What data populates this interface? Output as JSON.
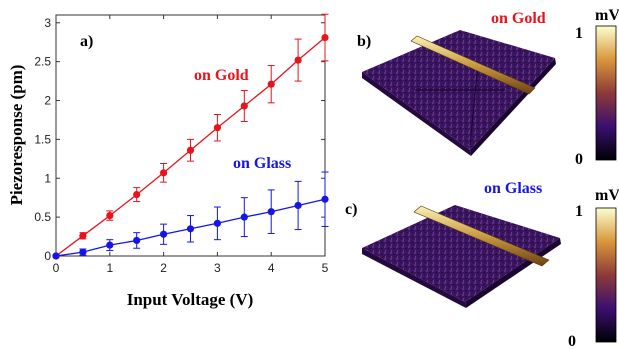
{
  "colors": {
    "gold_series": "#e8141c",
    "glass_series": "#1515e6",
    "topo_dark": "#2a0f4a",
    "topo_mid": "#5a2878",
    "topo_wire_light": "#f3e49a",
    "topo_wire_dark": "#7a4d16"
  },
  "chart_data": {
    "type": "line",
    "panel_label": "a)",
    "xlabel": "Input Voltage (V)",
    "ylabel": "Piezoresponse (pm)",
    "xlim": [
      0,
      5
    ],
    "ylim": [
      0,
      3.1
    ],
    "grid": false,
    "x_ticks": [
      "0",
      "1",
      "2",
      "3",
      "4",
      "5"
    ],
    "y_ticks": [
      "0",
      "0.5",
      "1",
      "1.5",
      "2",
      "2.5",
      "3"
    ],
    "x": [
      0,
      0.5,
      1,
      1.5,
      2,
      2.5,
      3,
      3.5,
      4,
      4.5,
      5
    ],
    "series": [
      {
        "name": "on Gold",
        "color": "#e8141c",
        "values": [
          0,
          0.26,
          0.52,
          0.79,
          1.07,
          1.36,
          1.65,
          1.93,
          2.21,
          2.52,
          2.81
        ],
        "errors": [
          0,
          0.04,
          0.06,
          0.09,
          0.12,
          0.14,
          0.17,
          0.2,
          0.24,
          0.27,
          0.3
        ]
      },
      {
        "name": "on Glass",
        "color": "#1515e6",
        "values": [
          0,
          0.05,
          0.14,
          0.2,
          0.28,
          0.35,
          0.42,
          0.5,
          0.57,
          0.65,
          0.73
        ],
        "errors": [
          0,
          0.04,
          0.07,
          0.1,
          0.13,
          0.17,
          0.21,
          0.25,
          0.28,
          0.31,
          0.35
        ]
      }
    ]
  },
  "panels": {
    "b": {
      "label": "b)",
      "title": "on Gold",
      "colorbar": {
        "unit": "mV",
        "max_label": "1",
        "min_label": "0"
      }
    },
    "c": {
      "label": "c)",
      "title": "on Glass",
      "colorbar": {
        "unit": "mV",
        "max_label": "1",
        "min_label": "0"
      }
    }
  }
}
